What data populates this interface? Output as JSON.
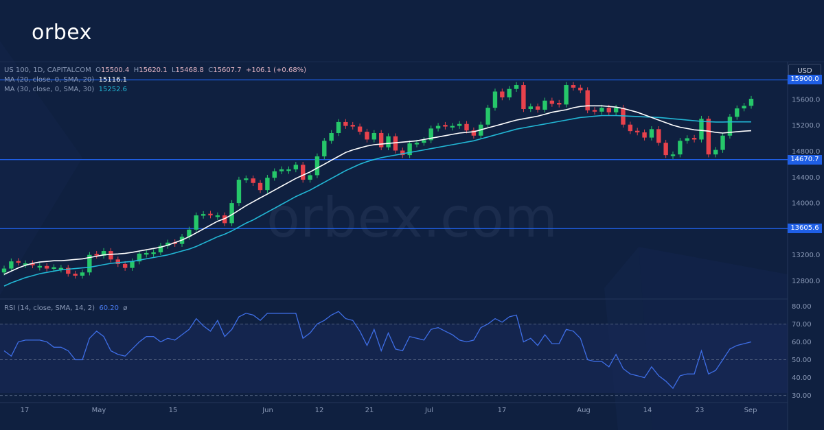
{
  "brand": {
    "logo_text": "orbex",
    "watermark": "orbex.com"
  },
  "toolbar": {
    "currency_label": "USD"
  },
  "legend": {
    "symbol": "US 100, 1D, CAPITALCOM",
    "open_label": "O",
    "open": "15500.4",
    "high_label": "H",
    "high": "15620.1",
    "low_label": "L",
    "low": "15468.8",
    "close_label": "C",
    "close": "15607.7",
    "change": "+106.1 (+0.68%)",
    "ma20_label": "MA (20, close, 0, SMA, 20)",
    "ma20_value": "15116.1",
    "ma30_label": "MA (30, close, 0, SMA, 30)",
    "ma30_value": "15252.6",
    "rsi_label": "RSI (14, close, SMA, 14, 2)",
    "rsi_value": "60.20",
    "rsi_extra": "ø"
  },
  "colors": {
    "background": "#0f2040",
    "bull": "#26c76a",
    "bear": "#e8424c",
    "ma20": "#ffffff",
    "ma30": "#22b8d6",
    "level_line": "#1f5fe6",
    "rsi_line": "#3e6ee6"
  },
  "chart_data": [
    {
      "type": "candlestick",
      "title": "US 100, 1D, CAPITALCOM",
      "x_tick_labels": [
        "17",
        "May",
        "15",
        "Jun",
        "12",
        "21",
        "Jul",
        "17",
        "Aug",
        "14",
        "23",
        "Sep"
      ],
      "y_tick_labels": [
        "15600.0",
        "15200.0",
        "14800.0",
        "14400.0",
        "14000.0",
        "13600.0",
        "13200.0",
        "12800.0"
      ],
      "ylim": [
        12520,
        16180
      ],
      "horizontal_levels": [
        {
          "label": "15900.0",
          "value": 15900.0
        },
        {
          "label": "14670.7",
          "value": 14670.7
        },
        {
          "label": "13605.6",
          "value": 13605.6
        }
      ],
      "candles_close": [
        12990,
        13100,
        13080,
        13070,
        13040,
        13030,
        12990,
        13010,
        13000,
        12910,
        12880,
        12930,
        13200,
        13190,
        13260,
        13130,
        13060,
        13000,
        13100,
        13220,
        13230,
        13240,
        13340,
        13390,
        13370,
        13480,
        13590,
        13810,
        13830,
        13810,
        13810,
        13690,
        14000,
        14360,
        14380,
        14310,
        14200,
        14390,
        14490,
        14520,
        14520,
        14590,
        14360,
        14430,
        14720,
        14960,
        15080,
        15250,
        15190,
        15180,
        15100,
        14980,
        15080,
        14860,
        15030,
        14810,
        14740,
        14920,
        14930,
        14970,
        15150,
        15190,
        15180,
        15190,
        15220,
        15120,
        15040,
        15210,
        15470,
        15720,
        15630,
        15760,
        15820,
        15450,
        15490,
        15440,
        15580,
        15530,
        15520,
        15820,
        15780,
        15740,
        15430,
        15410,
        15470,
        15400,
        15470,
        15210,
        15110,
        15090,
        15010,
        15140,
        14930,
        14740,
        14750,
        14960,
        15000,
        14980,
        15300,
        14750,
        14820,
        15040,
        15330,
        15460,
        15500,
        15608
      ],
      "candles_color": [
        "up",
        "up",
        "down",
        "up",
        "down",
        "up",
        "down",
        "up",
        "up",
        "down",
        "down",
        "up",
        "up",
        "down",
        "up",
        "down",
        "down",
        "down",
        "up",
        "up",
        "up",
        "up",
        "up",
        "up",
        "down",
        "up",
        "up",
        "up",
        "up",
        "down",
        "up",
        "down",
        "up",
        "up",
        "up",
        "down",
        "down",
        "up",
        "up",
        "up",
        "up",
        "up",
        "down",
        "up",
        "up",
        "up",
        "up",
        "up",
        "down",
        "down",
        "down",
        "down",
        "up",
        "down",
        "up",
        "down",
        "down",
        "up",
        "up",
        "up",
        "up",
        "up",
        "down",
        "up",
        "up",
        "down",
        "down",
        "up",
        "up",
        "up",
        "down",
        "up",
        "up",
        "down",
        "up",
        "down",
        "up",
        "down",
        "down",
        "up",
        "down",
        "down",
        "down",
        "down",
        "up",
        "down",
        "up",
        "down",
        "down",
        "down",
        "down",
        "up",
        "down",
        "down",
        "up",
        "up",
        "up",
        "down",
        "up",
        "down",
        "up",
        "up",
        "up",
        "up",
        "up",
        "up"
      ],
      "ma20": [
        12900,
        12950,
        13000,
        13040,
        13070,
        13090,
        13100,
        13110,
        13110,
        13120,
        13130,
        13140,
        13160,
        13180,
        13200,
        13210,
        13215,
        13225,
        13240,
        13260,
        13280,
        13300,
        13320,
        13350,
        13390,
        13430,
        13480,
        13540,
        13600,
        13660,
        13720,
        13760,
        13820,
        13890,
        13960,
        14020,
        14080,
        14140,
        14200,
        14260,
        14320,
        14380,
        14430,
        14480,
        14540,
        14600,
        14660,
        14720,
        14780,
        14820,
        14850,
        14880,
        14900,
        14910,
        14920,
        14930,
        14940,
        14950,
        14960,
        14980,
        15000,
        15020,
        15040,
        15060,
        15080,
        15090,
        15100,
        15130,
        15160,
        15190,
        15220,
        15250,
        15280,
        15300,
        15320,
        15340,
        15370,
        15400,
        15420,
        15440,
        15470,
        15490,
        15500,
        15500,
        15500,
        15490,
        15480,
        15460,
        15430,
        15400,
        15360,
        15320,
        15280,
        15240,
        15200,
        15170,
        15150,
        15130,
        15120,
        15110,
        15090,
        15080,
        15090,
        15100,
        15110,
        15116
      ],
      "ma30": [
        12720,
        12770,
        12810,
        12850,
        12880,
        12910,
        12930,
        12950,
        12970,
        12980,
        12990,
        13000,
        13010,
        13030,
        13050,
        13070,
        13080,
        13090,
        13100,
        13120,
        13140,
        13160,
        13180,
        13200,
        13230,
        13260,
        13290,
        13330,
        13380,
        13430,
        13480,
        13520,
        13570,
        13630,
        13690,
        13740,
        13800,
        13860,
        13920,
        13980,
        14040,
        14100,
        14150,
        14200,
        14260,
        14320,
        14380,
        14440,
        14500,
        14550,
        14600,
        14640,
        14670,
        14700,
        14720,
        14740,
        14760,
        14780,
        14800,
        14820,
        14840,
        14860,
        14880,
        14900,
        14920,
        14940,
        14960,
        14990,
        15020,
        15050,
        15080,
        15110,
        15140,
        15160,
        15180,
        15200,
        15220,
        15240,
        15260,
        15280,
        15300,
        15320,
        15330,
        15340,
        15350,
        15350,
        15350,
        15345,
        15340,
        15335,
        15330,
        15325,
        15320,
        15310,
        15300,
        15290,
        15280,
        15270,
        15260,
        15255,
        15250,
        15250,
        15252,
        15252,
        15252,
        15252
      ]
    },
    {
      "type": "line",
      "title": "RSI (14, close, SMA, 14, 2)",
      "y_tick_labels": [
        "80.00",
        "70.00",
        "60.00",
        "50.00",
        "40.00",
        "30.00"
      ],
      "ylim": [
        26,
        84
      ],
      "reference_lines": [
        70,
        50,
        30
      ],
      "values": [
        55,
        52,
        60,
        61,
        61,
        61,
        60,
        57,
        57,
        55,
        50,
        50,
        62,
        66,
        63,
        55,
        53,
        52,
        56,
        60,
        63,
        63,
        60,
        62,
        61,
        64,
        67,
        73,
        69,
        66,
        72,
        63,
        67,
        74,
        76,
        75,
        72,
        76,
        76,
        76,
        76,
        76,
        62,
        65,
        70,
        72,
        75,
        77,
        73,
        72,
        66,
        58,
        67,
        55,
        65,
        56,
        55,
        63,
        62,
        61,
        67,
        68,
        66,
        64,
        61,
        60,
        61,
        68,
        70,
        73,
        71,
        74,
        75,
        60,
        62,
        58,
        64,
        59,
        59,
        67,
        66,
        62,
        50,
        49,
        49,
        46,
        53,
        45,
        42,
        41,
        40,
        46,
        41,
        38,
        34,
        41,
        42,
        42,
        55,
        42,
        44,
        50,
        56,
        58,
        59,
        60
      ]
    }
  ]
}
